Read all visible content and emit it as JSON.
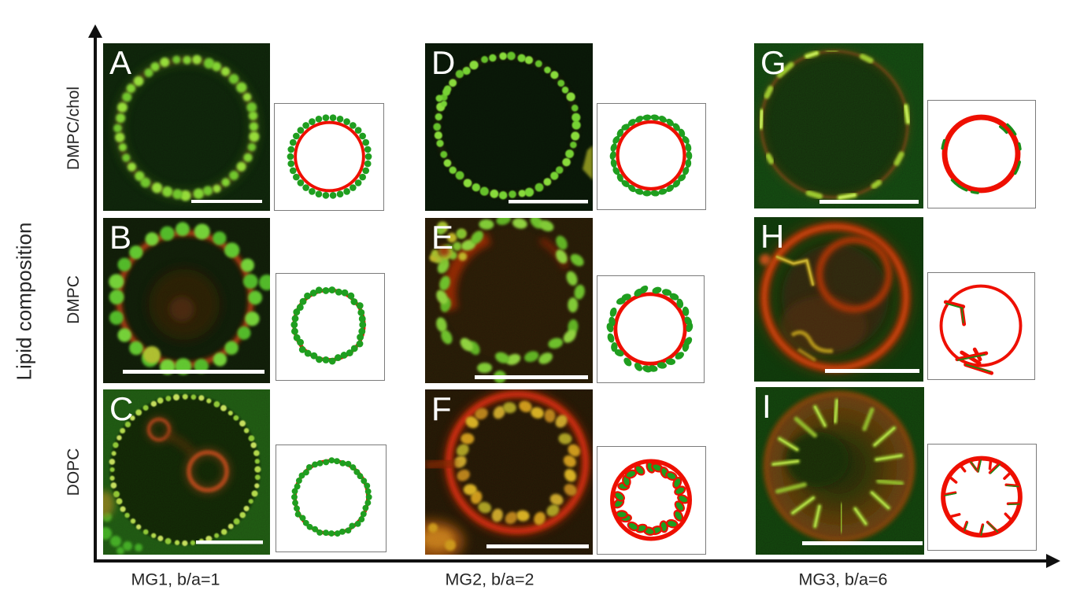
{
  "figure": {
    "y_axis_title": "Lipid composition",
    "row_labels": [
      "DMPC/chol",
      "DMPC",
      "DOPC"
    ],
    "column_labels": [
      "MG1, b/a=1",
      "MG2, b/a=2",
      "MG3, b/a=6"
    ]
  },
  "colors": {
    "schematic_red": "#ee0f00",
    "schematic_green": "#1f9e1f",
    "micrograph_green": "#7fd434",
    "micrograph_red": "#c01d06",
    "axis_black": "#101010",
    "label_text": "#262626",
    "scalebar_white": "#ffffff"
  },
  "panels": [
    {
      "letter": "A",
      "row_label": "DMPC/chol",
      "column_label": "MG1, b/a=1",
      "micro_type": "green-dot-ring-vesicle",
      "schematic_type": "green-dots-outside-red-circle",
      "has_scale_bar": true
    },
    {
      "letter": "B",
      "row_label": "DMPC",
      "column_label": "MG1, b/a=1",
      "micro_type": "green-blob-ring-on-red-membrane",
      "schematic_type": "green-dots-on-red-circle",
      "has_scale_bar": true
    },
    {
      "letter": "C",
      "row_label": "DOPC",
      "column_label": "MG1, b/a=1",
      "micro_type": "fine-dot-rim-with-inner-red-vesicles",
      "schematic_type": "green-dots-on-red-circle",
      "has_scale_bar": true
    },
    {
      "letter": "D",
      "row_label": "DMPC/chol",
      "column_label": "MG2, b/a=2",
      "micro_type": "green-dot-ring-vesicle",
      "schematic_type": "green-ellipses-outside-red-circle",
      "has_scale_bar": true
    },
    {
      "letter": "E",
      "row_label": "DMPC",
      "column_label": "MG2, b/a=2",
      "micro_type": "scattered-green-blobs-red-patches",
      "schematic_type": "green-ellipses-outside-red-circle",
      "has_scale_bar": true
    },
    {
      "letter": "F",
      "row_label": "DOPC",
      "column_label": "MG2, b/a=2",
      "micro_type": "red-rim-with-inner-yellow-blobs",
      "schematic_type": "green-ellipses-inside-red-circle",
      "has_scale_bar": true
    },
    {
      "letter": "G",
      "row_label": "DMPC/chol",
      "column_label": "MG3, b/a=6",
      "micro_type": "red-rim-with-green-membrane-patches",
      "schematic_type": "green-arcs-on-red-circle",
      "has_scale_bar": true
    },
    {
      "letter": "H",
      "row_label": "DMPC",
      "column_label": "MG3, b/a=6",
      "micro_type": "red-double-ring-vesicle",
      "schematic_type": "sparse-rod-clusters-inside-red-circle",
      "has_scale_bar": true
    },
    {
      "letter": "I",
      "row_label": "DOPC",
      "column_label": "MG3, b/a=6",
      "micro_type": "red-vesicle-radial-green-streaks",
      "schematic_type": "red-spikes-inward-on-red-circle",
      "has_scale_bar": true
    }
  ]
}
